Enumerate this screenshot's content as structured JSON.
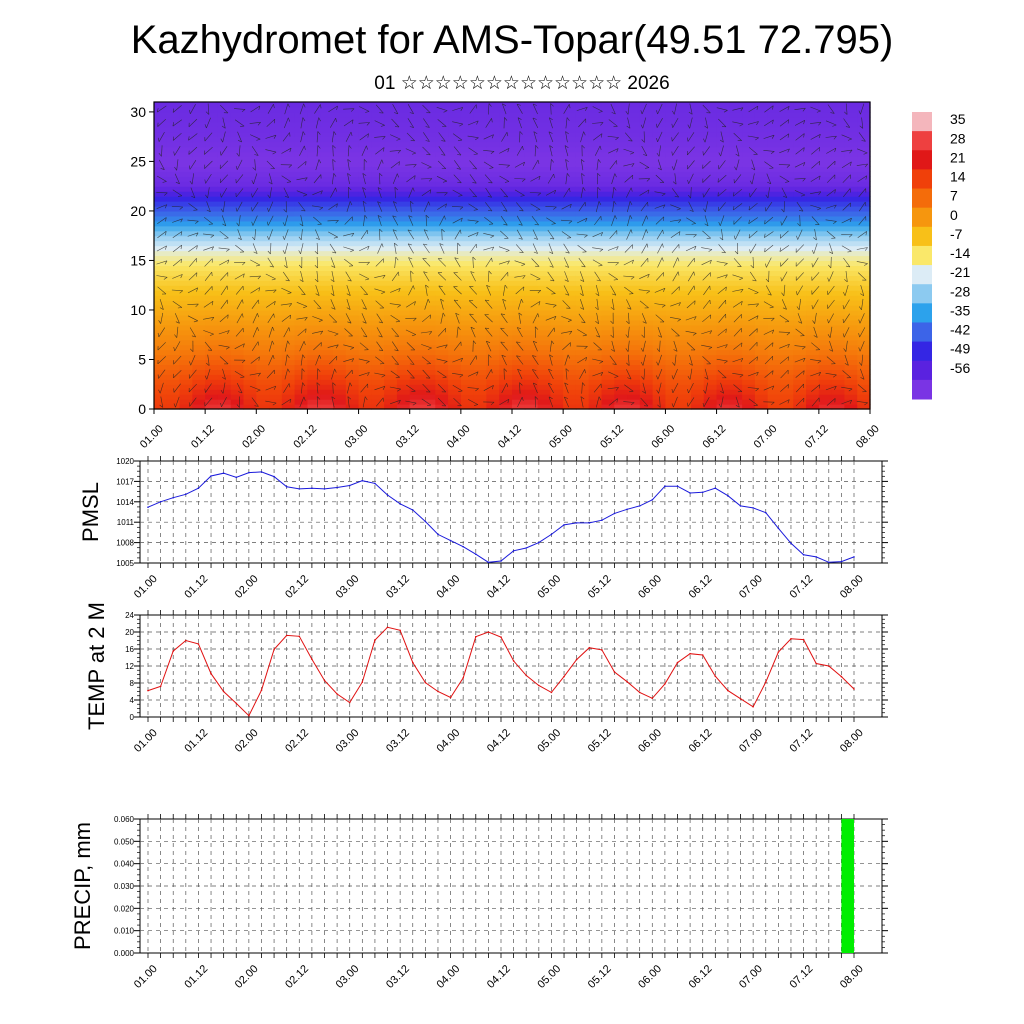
{
  "page": {
    "title": "Kazhydromet for AMS-Topar(49.51 72.795)",
    "subtitle": "01 ☆☆☆☆☆☆☆☆☆☆☆☆☆ 2026"
  },
  "colors": {
    "pmsl_line": "#1a1adb",
    "temp_line": "#e01010",
    "precip_bar": "#00ee00",
    "grid": "#555555"
  },
  "chart_data": [
    {
      "id": "section",
      "type": "heatmap",
      "description_axis": "height",
      "xticks": [
        "01.00",
        "01.12",
        "02.00",
        "02.12",
        "03.00",
        "03.12",
        "04.00",
        "04.12",
        "05.00",
        "05.12",
        "06.00",
        "06.12",
        "07.00",
        "07.12",
        "08.00"
      ],
      "ylim": [
        0,
        31
      ],
      "yticks": [
        0,
        5,
        10,
        15,
        20,
        25,
        30
      ],
      "colorbar": {
        "labels": [
          "35",
          "28",
          "21",
          "14",
          "7",
          "0",
          "-7",
          "-14",
          "-21",
          "-28",
          "-35",
          "-42",
          "-49",
          "-56"
        ],
        "colors": [
          "#f4b6bc",
          "#ee4040",
          "#e01818",
          "#f0400a",
          "#f46c0a",
          "#f6960e",
          "#f8c018",
          "#fae86a",
          "#dcecf6",
          "#8ccaf0",
          "#2ca2ec",
          "#3c64e8",
          "#3426e4",
          "#5a22e0",
          "#7a34e4"
        ]
      },
      "temperature_field": {
        "heights": [
          0,
          3,
          6,
          9,
          12,
          14.5,
          16,
          17.5,
          19,
          21,
          22.5,
          25,
          27,
          31
        ],
        "base_temps": [
          24,
          16,
          8,
          2,
          -4,
          -10,
          -16,
          -24,
          -34,
          -44,
          -56,
          -60,
          -58,
          -56
        ],
        "diurnal_amplitude_surface": 6
      }
    },
    {
      "id": "pmsl",
      "type": "line",
      "ylabel": "PMSL",
      "ylim": [
        1005,
        1020
      ],
      "yticks": [
        1005,
        1008,
        1011,
        1014,
        1017,
        1020
      ],
      "xticks": [
        "01.00",
        "01.12",
        "02.00",
        "02.12",
        "03.00",
        "03.12",
        "04.00",
        "04.12",
        "05.00",
        "05.12",
        "06.00",
        "06.12",
        "07.00",
        "07.12",
        "08.00"
      ],
      "x": [
        0,
        3,
        6,
        9,
        12,
        15,
        18,
        21,
        24,
        27,
        30,
        33,
        36,
        39,
        42,
        45,
        48,
        51,
        54,
        57,
        60,
        63,
        66,
        69,
        72,
        75,
        78,
        81,
        84,
        87,
        90,
        93,
        96,
        99,
        102,
        105,
        108,
        111,
        114,
        117,
        120,
        123,
        126,
        129,
        132,
        135,
        138,
        141,
        144,
        147,
        150,
        153,
        156,
        159,
        162,
        165,
        168
      ],
      "values": [
        1013.2,
        1014.0,
        1014.6,
        1015.1,
        1016.0,
        1017.8,
        1018.2,
        1017.6,
        1018.3,
        1018.4,
        1017.7,
        1016.2,
        1015.9,
        1016.0,
        1015.9,
        1016.1,
        1016.4,
        1017.1,
        1016.7,
        1015.0,
        1013.7,
        1012.8,
        1011.1,
        1009.2,
        1008.3,
        1007.4,
        1006.3,
        1005.1,
        1005.3,
        1006.8,
        1007.2,
        1008.0,
        1009.2,
        1010.6,
        1010.9,
        1010.9,
        1011.3,
        1012.3,
        1012.9,
        1013.4,
        1014.3,
        1016.3,
        1016.3,
        1015.3,
        1015.4,
        1016.0,
        1014.9,
        1013.4,
        1013.1,
        1012.4,
        1010.1,
        1007.9,
        1006.2,
        1005.9,
        1005.1,
        1005.2,
        1005.9
      ]
    },
    {
      "id": "temp",
      "type": "line",
      "ylabel": "TEMP at 2 M",
      "ylim": [
        0,
        24
      ],
      "yticks": [
        0,
        4,
        8,
        12,
        16,
        20,
        24
      ],
      "xticks": [
        "01.00",
        "01.12",
        "02.00",
        "02.12",
        "03.00",
        "03.12",
        "04.00",
        "04.12",
        "05.00",
        "05.12",
        "06.00",
        "06.12",
        "07.00",
        "07.12",
        "08.00"
      ],
      "x": [
        0,
        3,
        6,
        9,
        12,
        15,
        18,
        21,
        24,
        27,
        30,
        33,
        36,
        39,
        42,
        45,
        48,
        51,
        54,
        57,
        60,
        63,
        66,
        69,
        72,
        75,
        78,
        81,
        84,
        87,
        90,
        93,
        96,
        99,
        102,
        105,
        108,
        111,
        114,
        117,
        120,
        123,
        126,
        129,
        132,
        135,
        138,
        141,
        144,
        147,
        150,
        153,
        156,
        159,
        162,
        165,
        168
      ],
      "values": [
        6.2,
        7.2,
        15.5,
        18.0,
        17.2,
        10.2,
        6.0,
        3.2,
        0.3,
        6.3,
        15.9,
        19.2,
        19.0,
        13.6,
        8.6,
        5.4,
        3.4,
        8.2,
        18.1,
        21.1,
        20.4,
        12.8,
        8.1,
        6.0,
        4.6,
        9.2,
        18.9,
        20.0,
        18.8,
        13.2,
        9.8,
        7.4,
        5.8,
        9.5,
        13.5,
        16.3,
        15.8,
        10.6,
        8.3,
        5.8,
        4.4,
        7.8,
        12.8,
        14.9,
        14.6,
        9.6,
        6.2,
        4.3,
        2.4,
        8.2,
        15.3,
        18.4,
        18.2,
        12.6,
        12.0,
        9.5,
        6.6
      ]
    },
    {
      "id": "precip",
      "type": "bar",
      "ylabel": "PRECIP, mm",
      "ylim": [
        0,
        0.06
      ],
      "yticks": [
        "0.000",
        "0.010",
        "0.020",
        "0.030",
        "0.040",
        "0.050",
        "0.060"
      ],
      "xticks": [
        "01.00",
        "01.12",
        "02.00",
        "02.12",
        "03.00",
        "03.12",
        "04.00",
        "04.12",
        "05.00",
        "05.12",
        "06.00",
        "06.12",
        "07.00",
        "07.12",
        "08.00"
      ],
      "bars": [
        {
          "x_start": 165,
          "x_end": 168,
          "value": 0.06
        }
      ]
    }
  ]
}
